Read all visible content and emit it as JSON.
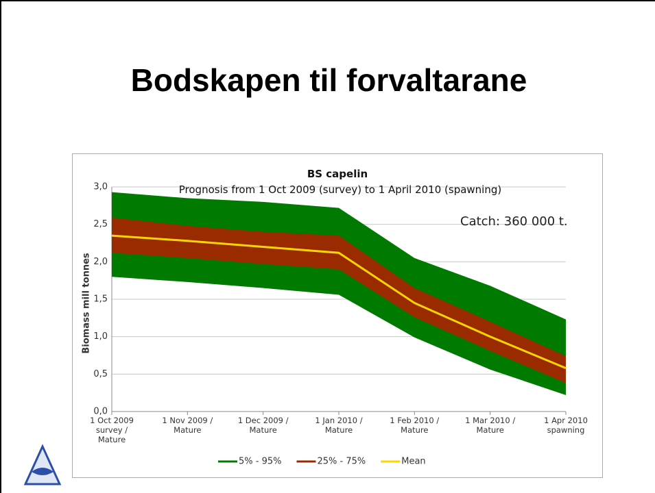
{
  "title": "Bodskapen til forvaltarane",
  "chart_data": {
    "type": "band",
    "title": "BS capelin",
    "subtitle": "Prognosis from 1 Oct 2009 (survey) to 1 April 2010 (spawning)",
    "annotation": "Catch: 360 000 t.",
    "y_label": "Biomass mill tonnes",
    "categories": [
      "1 Oct 2009\nsurvey /\nMature",
      "1 Nov 2009 /\nMature",
      "1 Dec 2009 /\nMature",
      "1 Jan 2010 /\nMature",
      "1 Feb 2010 /\nMature",
      "1 Mar 2010 /\nMature",
      "1 Apr 2010\nspawning"
    ],
    "series": [
      {
        "name": "5% - 95%",
        "color": "#007a00",
        "upper": [
          2.93,
          2.85,
          2.8,
          2.72,
          2.05,
          1.68,
          1.23
        ],
        "lower": [
          1.8,
          1.73,
          1.65,
          1.56,
          0.99,
          0.56,
          0.22
        ]
      },
      {
        "name": "25% - 75%",
        "color": "#9a2a00",
        "upper": [
          2.59,
          2.48,
          2.4,
          2.35,
          1.65,
          1.2,
          0.74
        ],
        "lower": [
          2.12,
          2.05,
          1.97,
          1.9,
          1.26,
          0.81,
          0.38
        ]
      },
      {
        "name": "Mean",
        "color": "#ffd700",
        "values": [
          2.35,
          2.28,
          2.2,
          2.12,
          1.45,
          1.0,
          0.58
        ]
      }
    ],
    "ylim": [
      0,
      3
    ],
    "yticks": [
      {
        "value": 0,
        "label": "0,0"
      },
      {
        "value": 0.5,
        "label": "0,5"
      },
      {
        "value": 1,
        "label": "1,0"
      },
      {
        "value": 1.5,
        "label": "1,5"
      },
      {
        "value": 2,
        "label": "2,0"
      },
      {
        "value": 2.5,
        "label": "2,5"
      },
      {
        "value": 3,
        "label": "3,0"
      }
    ],
    "grid": true
  }
}
